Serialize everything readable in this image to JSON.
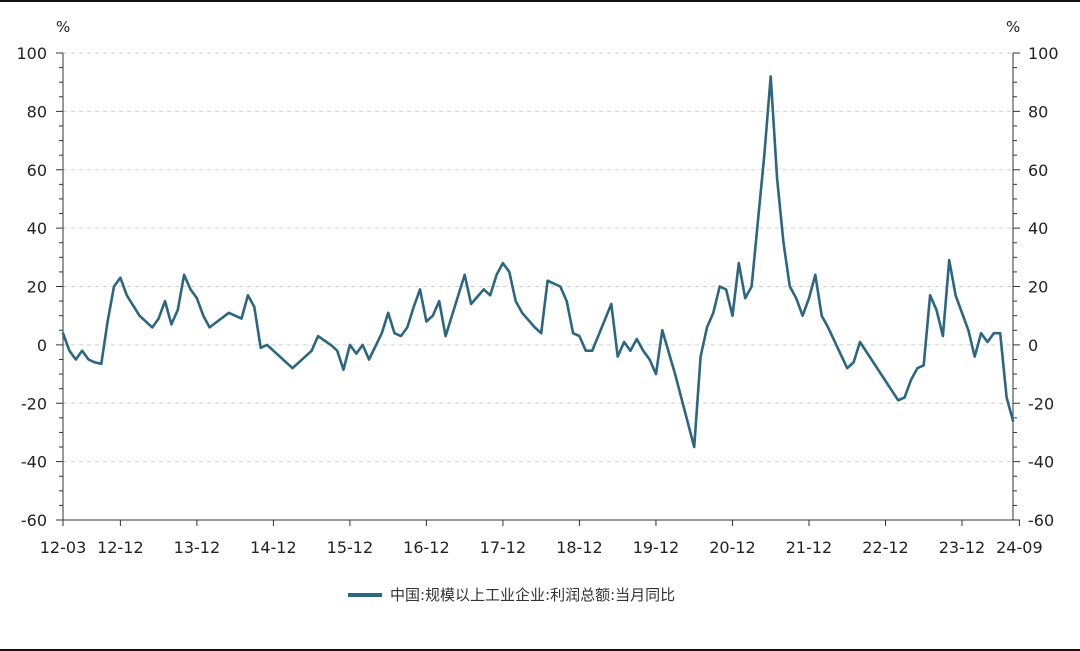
{
  "chart_data": {
    "type": "line",
    "title": "",
    "xlabel": "",
    "ylabel": "",
    "y_unit_left": "%",
    "y_unit_right": "%",
    "ylim": [
      -60,
      100
    ],
    "y_ticks": [
      -60,
      -40,
      -20,
      0,
      20,
      40,
      60,
      80,
      100
    ],
    "y_tick_labels": [
      "-60",
      "-40",
      "-20",
      "0",
      "20",
      "40",
      "60",
      "80",
      "100"
    ],
    "x_tick_labels": [
      "12-03",
      "12-12",
      "13-12",
      "14-12",
      "15-12",
      "16-12",
      "17-12",
      "18-12",
      "19-12",
      "20-12",
      "21-12",
      "22-12",
      "23-12",
      "24-09"
    ],
    "grid": "horizontal dashed",
    "legend_position": "bottom-center",
    "series_color": "#2c6680",
    "series": [
      {
        "name": "中国:规模以上工业企业:利润总额:当月同比",
        "points": [
          [
            "2012-03",
            4
          ],
          [
            "2012-04",
            -2
          ],
          [
            "2012-05",
            -5
          ],
          [
            "2012-06",
            -2
          ],
          [
            "2012-07",
            -5
          ],
          [
            "2012-08",
            -6
          ],
          [
            "2012-09",
            -6.5
          ],
          [
            "2012-10",
            8
          ],
          [
            "2012-11",
            20
          ],
          [
            "2012-12",
            23
          ],
          [
            "2013-01",
            17
          ],
          [
            "2013-03",
            10
          ],
          [
            "2013-05",
            6
          ],
          [
            "2013-06",
            9
          ],
          [
            "2013-07",
            15
          ],
          [
            "2013-08",
            7
          ],
          [
            "2013-09",
            12
          ],
          [
            "2013-10",
            24
          ],
          [
            "2013-11",
            19
          ],
          [
            "2013-12",
            16
          ],
          [
            "2014-01",
            10
          ],
          [
            "2014-02",
            6
          ],
          [
            "2014-05",
            11
          ],
          [
            "2014-07",
            9
          ],
          [
            "2014-08",
            17
          ],
          [
            "2014-09",
            13
          ],
          [
            "2014-10",
            -1
          ],
          [
            "2014-11",
            0
          ],
          [
            "2014-12",
            -2
          ],
          [
            "2015-01",
            -4
          ],
          [
            "2015-03",
            -8
          ],
          [
            "2015-06",
            -2
          ],
          [
            "2015-07",
            3
          ],
          [
            "2015-09",
            0
          ],
          [
            "2015-10",
            -2
          ],
          [
            "2015-11",
            -8.5
          ],
          [
            "2015-12",
            0
          ],
          [
            "2016-01",
            -3
          ],
          [
            "2016-02",
            0
          ],
          [
            "2016-03",
            -5
          ],
          [
            "2016-05",
            4
          ],
          [
            "2016-06",
            11
          ],
          [
            "2016-07",
            4
          ],
          [
            "2016-08",
            3
          ],
          [
            "2016-09",
            6
          ],
          [
            "2016-10",
            13
          ],
          [
            "2016-11",
            19
          ],
          [
            "2016-12",
            8
          ],
          [
            "2017-01",
            10
          ],
          [
            "2017-02",
            15
          ],
          [
            "2017-03",
            3
          ],
          [
            "2017-05",
            17
          ],
          [
            "2017-06",
            24
          ],
          [
            "2017-07",
            14
          ],
          [
            "2017-09",
            19
          ],
          [
            "2017-10",
            17
          ],
          [
            "2017-11",
            24
          ],
          [
            "2017-12",
            28
          ],
          [
            "2018-01",
            25
          ],
          [
            "2018-02",
            15
          ],
          [
            "2018-03",
            11
          ],
          [
            "2018-05",
            6
          ],
          [
            "2018-06",
            4
          ],
          [
            "2018-07",
            22
          ],
          [
            "2018-09",
            20
          ],
          [
            "2018-10",
            15
          ],
          [
            "2018-11",
            4
          ],
          [
            "2018-12",
            3
          ],
          [
            "2019-01",
            -2
          ],
          [
            "2019-02",
            -2
          ],
          [
            "2019-05",
            14
          ],
          [
            "2019-06",
            -4
          ],
          [
            "2019-07",
            1
          ],
          [
            "2019-08",
            -2
          ],
          [
            "2019-09",
            2
          ],
          [
            "2019-10",
            -2
          ],
          [
            "2019-11",
            -5
          ],
          [
            "2019-12",
            -10
          ],
          [
            "2020-01",
            5
          ],
          [
            "2020-03",
            -10
          ],
          [
            "2020-06",
            -35
          ],
          [
            "2020-07",
            -4
          ],
          [
            "2020-08",
            6
          ],
          [
            "2020-09",
            11
          ],
          [
            "2020-10",
            20
          ],
          [
            "2020-11",
            19
          ],
          [
            "2020-12",
            10
          ],
          [
            "2021-01",
            28
          ],
          [
            "2021-02",
            16
          ],
          [
            "2021-03",
            20
          ],
          [
            "2021-05",
            65
          ],
          [
            "2021-06",
            92
          ],
          [
            "2021-07",
            57
          ],
          [
            "2021-08",
            35
          ],
          [
            "2021-09",
            20
          ],
          [
            "2021-10",
            16
          ],
          [
            "2021-11",
            10
          ],
          [
            "2021-12",
            16
          ],
          [
            "2022-01",
            24
          ],
          [
            "2022-02",
            10
          ],
          [
            "2022-03",
            6
          ],
          [
            "2022-06",
            -8
          ],
          [
            "2022-07",
            -6
          ],
          [
            "2022-08",
            1
          ],
          [
            "2023-02",
            -19
          ],
          [
            "2023-03",
            -18
          ],
          [
            "2023-04",
            -12
          ],
          [
            "2023-05",
            -8
          ],
          [
            "2023-06",
            -7
          ],
          [
            "2023-07",
            17
          ],
          [
            "2023-08",
            12
          ],
          [
            "2023-09",
            3
          ],
          [
            "2023-10",
            29
          ],
          [
            "2023-11",
            17
          ],
          [
            "2024-01",
            5
          ],
          [
            "2024-02",
            -4
          ],
          [
            "2024-03",
            4
          ],
          [
            "2024-04",
            1
          ],
          [
            "2024-05",
            4
          ],
          [
            "2024-06",
            4
          ],
          [
            "2024-07",
            -18
          ],
          [
            "2024-08",
            -26
          ]
        ]
      }
    ]
  }
}
